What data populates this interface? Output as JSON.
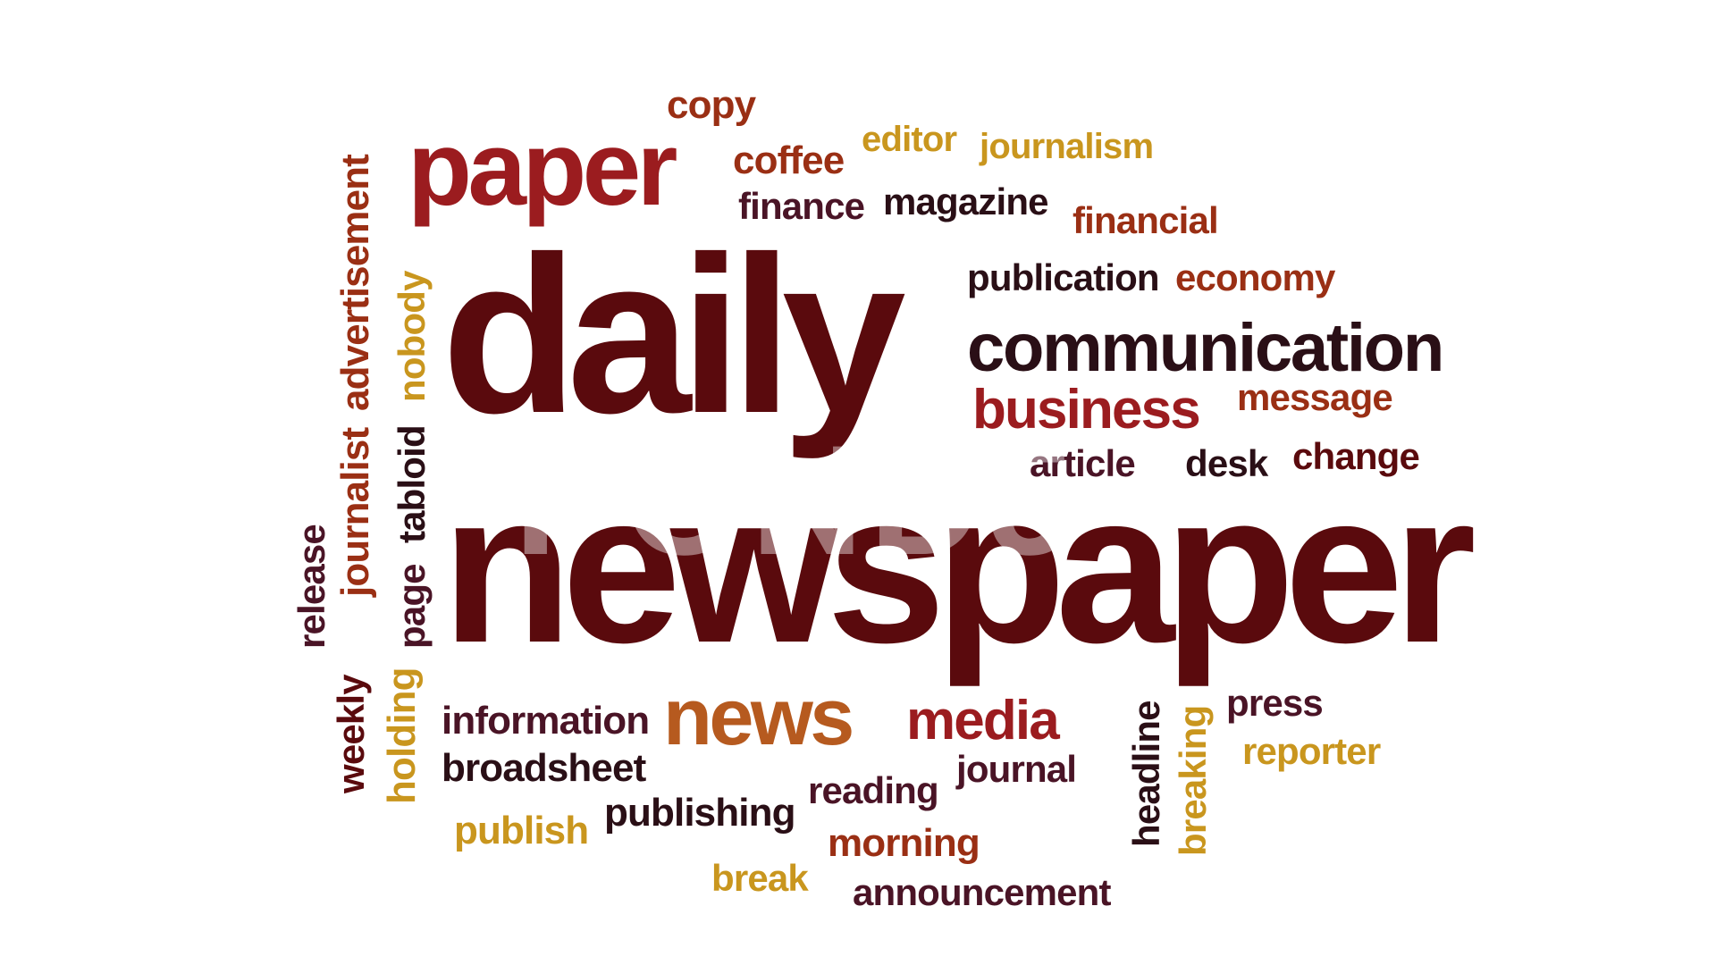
{
  "watermark": "POND5",
  "colors": {
    "maroon": "#5a0a0d",
    "red": "#9b1c1f",
    "rust": "#9a2f14",
    "orange": "#b65a1f",
    "gold": "#c9961e",
    "dark": "#2a0f16",
    "plum": "#4a1426"
  },
  "words": {
    "copy": "copy",
    "paper": "paper",
    "coffee": "coffee",
    "editor": "editor",
    "journalism": "journalism",
    "finance": "finance",
    "magazine": "magazine",
    "financial": "financial",
    "daily": "daily",
    "publication": "publication",
    "economy": "economy",
    "communication": "communication",
    "business": "business",
    "message": "message",
    "article": "article",
    "desk": "desk",
    "change": "change",
    "newspaper": "newspaper",
    "information": "information",
    "news": "news",
    "media": "media",
    "press": "press",
    "reporter": "reporter",
    "broadsheet": "broadsheet",
    "journal": "journal",
    "reading": "reading",
    "publishing": "publishing",
    "publish": "publish",
    "morning": "morning",
    "break": "break",
    "announcement": "announcement",
    "advertisement": "advertisement",
    "journalist": "journalist",
    "nobody": "nobody",
    "tabloid": "tabloid",
    "page": "page",
    "release": "release",
    "weekly": "weekly",
    "holding": "holding",
    "headline": "headline",
    "breaking": "breaking"
  }
}
